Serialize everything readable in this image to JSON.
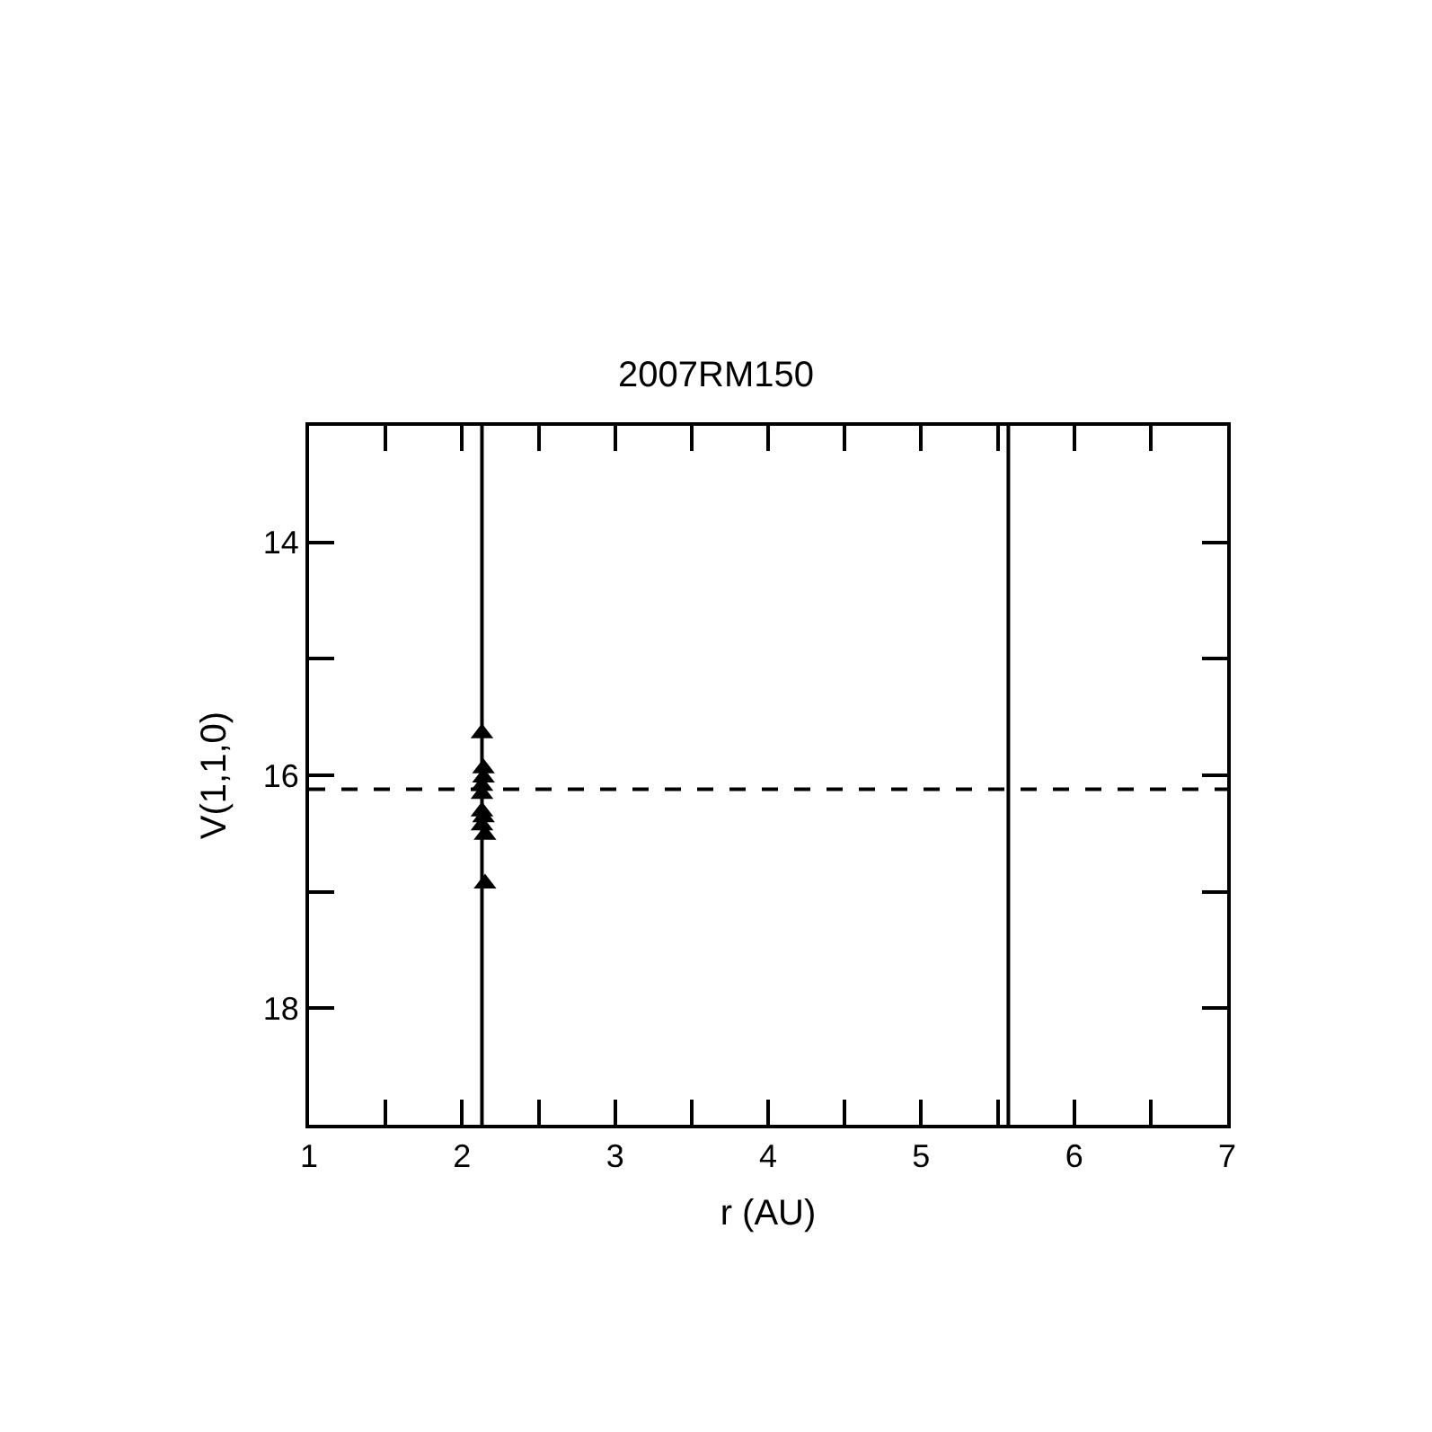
{
  "chart_data": {
    "type": "scatter",
    "title": "2007RM150",
    "xlabel": "r (AU)",
    "ylabel": "V(1,1,0)",
    "x": [
      2.13,
      2.14,
      2.14,
      2.13,
      2.13,
      2.13,
      2.14,
      2.13,
      2.15,
      2.15
    ],
    "series": [
      {
        "color": "#000000",
        "values": [
          15.64,
          15.94,
          16.02,
          16.09,
          16.16,
          16.31,
          16.36,
          16.43,
          16.51,
          16.93
        ]
      }
    ],
    "marker": "triangle",
    "grid": false,
    "xlim": [
      1,
      7
    ],
    "ylim": [
      19,
      13
    ],
    "xticks": [
      1,
      {
        "value": 1.5,
        "label": null
      },
      2,
      {
        "value": 2.5,
        "label": null
      },
      3,
      {
        "value": 3.5,
        "label": null
      },
      4,
      {
        "value": 4.5,
        "label": null
      },
      5,
      {
        "value": 5.5,
        "label": null
      },
      6,
      {
        "value": 6.5,
        "label": null
      },
      7
    ],
    "yticks": [
      14,
      {
        "value": 15,
        "label": null
      },
      16,
      {
        "value": 17,
        "label": null
      },
      18
    ],
    "ref_lines": [
      {
        "axis": "x",
        "value": 2.13,
        "color": "#000000",
        "line_style": "solid"
      },
      {
        "axis": "x",
        "value": 5.57,
        "color": "#000000",
        "line_style": "solid"
      },
      {
        "axis": "y",
        "value": 16.12,
        "color": "#000000",
        "line_style": "dashed"
      }
    ]
  }
}
